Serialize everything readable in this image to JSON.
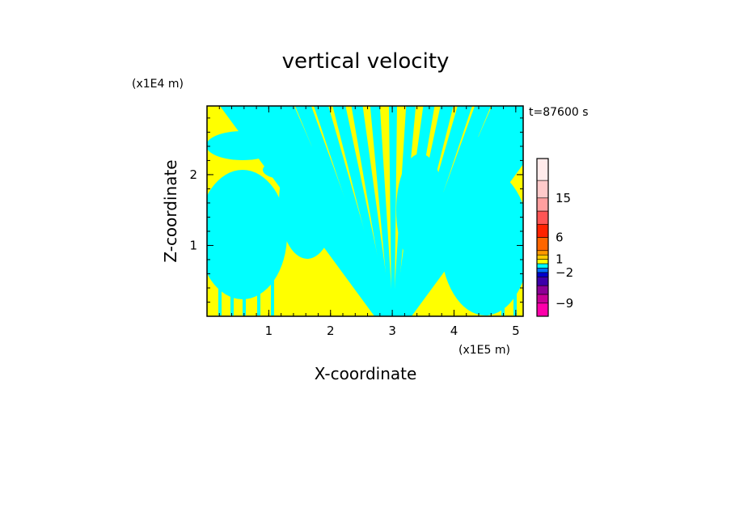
{
  "chart_data": {
    "type": "heatmap",
    "title": "vertical velocity",
    "xlabel": "X-coordinate",
    "ylabel": "Z-coordinate",
    "x_unit": "(x1E5 m)",
    "y_unit": "(x1E4 m)",
    "time_label": "t=87600 s",
    "xlim": [
      0,
      5.12
    ],
    "ylim": [
      0,
      2.97
    ],
    "x_ticks": [
      1,
      2,
      3,
      4,
      5
    ],
    "x_tick_labels": [
      "1",
      "2",
      "3",
      "4",
      "5"
    ],
    "y_ticks": [
      1,
      2
    ],
    "y_tick_labels": [
      "1",
      "2"
    ],
    "field_colors": {
      "positive": "#ffff00",
      "negative": "#00ffff"
    },
    "colorbar": {
      "levels": [
        {
          "color": "#ff00aa"
        },
        {
          "color": "#c80096"
        },
        {
          "color": "#8c0096"
        },
        {
          "color": "#3c00aa"
        },
        {
          "color": "#0000cc"
        },
        {
          "color": "#0070ff"
        },
        {
          "color": "#00ffff"
        },
        {
          "color": "#ffff00"
        },
        {
          "color": "#ffcc00"
        },
        {
          "color": "#ff9900"
        },
        {
          "color": "#ff6600"
        },
        {
          "color": "#ff2200"
        },
        {
          "color": "#ff5555"
        },
        {
          "color": "#ff9f9f"
        },
        {
          "color": "#ffcaca"
        },
        {
          "color": "#ffebeb"
        }
      ],
      "ticks": [
        {
          "label": "15",
          "value": 15
        },
        {
          "label": "6",
          "value": 6
        },
        {
          "label": "1",
          "value": 1
        },
        {
          "label": "−2",
          "value": -2
        },
        {
          "label": "−9",
          "value": -9
        }
      ]
    }
  }
}
